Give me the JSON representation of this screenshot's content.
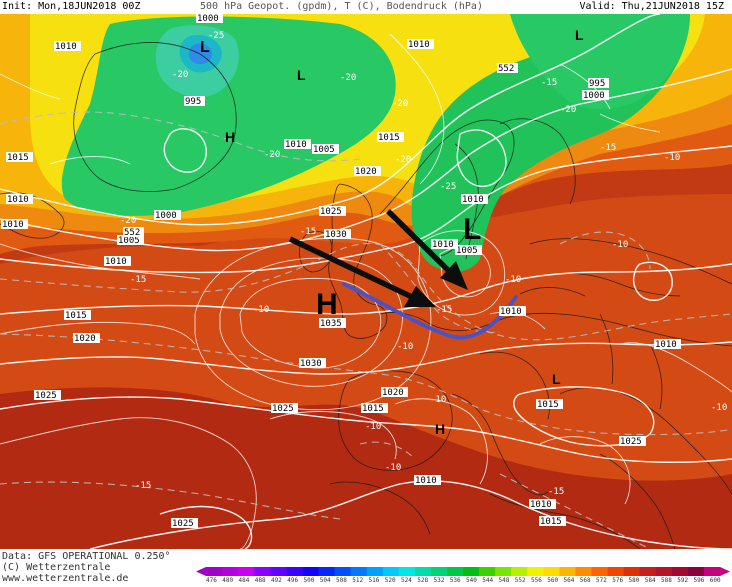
{
  "header": {
    "init_text": "Init: Mon,18JUN2018 00Z",
    "variables_text": "500 hPa Geopot. (gpdm), T (C), Bodendruck (hPa)",
    "valid_text": "Valid: Thu,21JUN2018 15Z"
  },
  "map": {
    "centers": [
      {
        "label": "L",
        "color": "#000000"
      },
      {
        "label": "L",
        "color": "#000000"
      },
      {
        "label": "H",
        "color": "#000000"
      },
      {
        "label": "L",
        "color": "#000000"
      },
      {
        "label": "H",
        "color": "#000000"
      },
      {
        "label": "L",
        "color": "#000000"
      },
      {
        "label": "H",
        "color": "#000000"
      },
      {
        "label": "L",
        "color": "#000000"
      }
    ],
    "pressure_labels": [
      "1010",
      "1000",
      "995",
      "1010",
      "1015",
      "1010",
      "1005",
      "1015",
      "1010",
      "1010",
      "995",
      "1000",
      "1020",
      "1025",
      "1030",
      "1000",
      "1005",
      "1010",
      "1015",
      "1020",
      "1025",
      "1035",
      "1030",
      "1005",
      "1010",
      "1020",
      "1015",
      "1025",
      "1025",
      "1015",
      "1010",
      "1010",
      "1010",
      "1010",
      "1015",
      "1025",
      "1010"
    ],
    "temperature_labels": [
      "-20",
      "-25",
      "-20",
      "-15",
      "-20",
      "-20",
      "-20",
      "-25",
      "-15",
      "-20",
      "-15",
      "-20",
      "-15",
      "-15",
      "-10",
      "-15",
      "-10",
      "-10",
      "-10",
      "-10",
      "-10",
      "-10",
      "-15",
      "-10",
      "-10"
    ],
    "height_labels": [
      "552",
      "552"
    ],
    "annotations": {
      "arrow_color": "#000000",
      "front_line_color": "#4a52c8"
    }
  },
  "footer": {
    "data_source": "Data: GFS OPERATIONAL  0.250°",
    "copyright": "(C) Wetterzentrale",
    "website": "www.wetterzentrale.de"
  },
  "scale": {
    "labels": [
      "476",
      "480",
      "484",
      "488",
      "492",
      "496",
      "500",
      "504",
      "508",
      "512",
      "516",
      "520",
      "524",
      "528",
      "532",
      "536",
      "540",
      "544",
      "548",
      "552",
      "556",
      "560",
      "564",
      "568",
      "572",
      "576",
      "580",
      "584",
      "588",
      "592",
      "596",
      "600"
    ],
    "colors": [
      "#a000c8",
      "#b400dc",
      "#c800f0",
      "#8c00ff",
      "#6400ff",
      "#3c00ff",
      "#1400ff",
      "#0028ff",
      "#0050ff",
      "#0078ff",
      "#00a0ff",
      "#00c8ff",
      "#00e6e6",
      "#00dcaa",
      "#00d278",
      "#00c846",
      "#00be14",
      "#3cd200",
      "#78e600",
      "#b4f000",
      "#f0f000",
      "#ffdc00",
      "#ffb400",
      "#ff8c00",
      "#ff6400",
      "#f04600",
      "#dc3200",
      "#c81e1e",
      "#b41428",
      "#a00a32",
      "#8c0040",
      "#c80080"
    ]
  }
}
